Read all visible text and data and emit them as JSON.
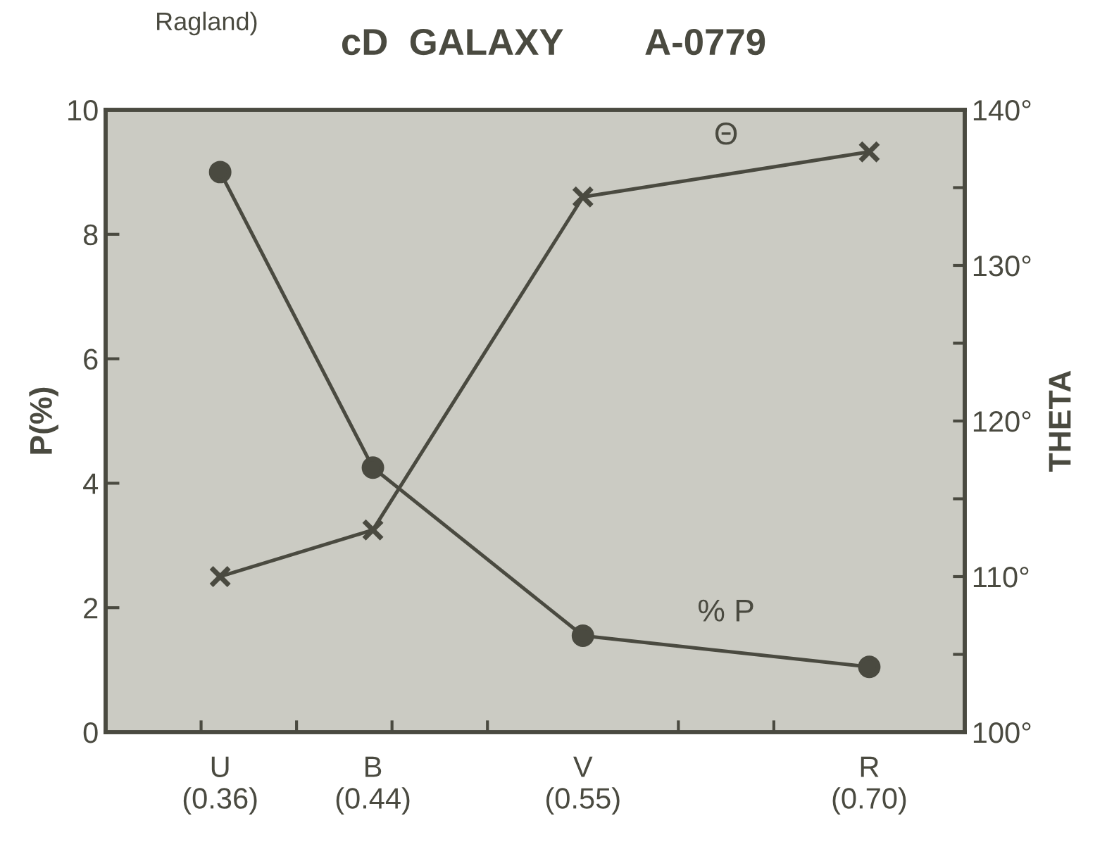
{
  "chart_data": {
    "type": "line",
    "title": "cD  GALAXY        A-0779",
    "annotations": [
      "Ragland)"
    ],
    "x": [
      0.36,
      0.44,
      0.55,
      0.7
    ],
    "xlim": [
      0.3,
      0.75
    ],
    "xticks": [
      {
        "value": 0.35,
        "label": null
      },
      {
        "value": 0.36,
        "label": "U\n(0.36)"
      },
      {
        "value": 0.4,
        "label": null
      },
      {
        "value": 0.44,
        "label": "B\n(0.44)"
      },
      {
        "value": 0.45,
        "label": null
      },
      {
        "value": 0.5,
        "label": null
      },
      {
        "value": 0.55,
        "label": "V\n(0.55)"
      },
      {
        "value": 0.6,
        "label": null
      },
      {
        "value": 0.65,
        "label": null
      },
      {
        "value": 0.7,
        "label": "R\n(0.70)"
      }
    ],
    "ylabel": "P(%)",
    "y2label": "THETA",
    "ylim": [
      0,
      10
    ],
    "yticks": [
      0,
      2,
      4,
      6,
      8,
      10
    ],
    "y2lim": [
      100,
      140
    ],
    "y2ticks": [
      {
        "value": 100,
        "label": "100°"
      },
      {
        "value": 105,
        "label": null
      },
      {
        "value": 110,
        "label": "110°"
      },
      {
        "value": 115,
        "label": null
      },
      {
        "value": 120,
        "label": "120°"
      },
      {
        "value": 125,
        "label": null
      },
      {
        "value": 130,
        "label": "130°"
      },
      {
        "value": 135,
        "label": null
      },
      {
        "value": 140,
        "label": "140°"
      }
    ],
    "grid": false,
    "legend": false,
    "series": [
      {
        "name": "% P",
        "color": "#4a4a40",
        "marker": "circle",
        "values": [
          9.0,
          4.25,
          1.55,
          1.05
        ]
      },
      {
        "name": "Θ",
        "color": "#4a4a40",
        "marker": "cross",
        "axis": "y2",
        "values": [
          110.0,
          113.0,
          134.4,
          137.3
        ]
      }
    ]
  }
}
